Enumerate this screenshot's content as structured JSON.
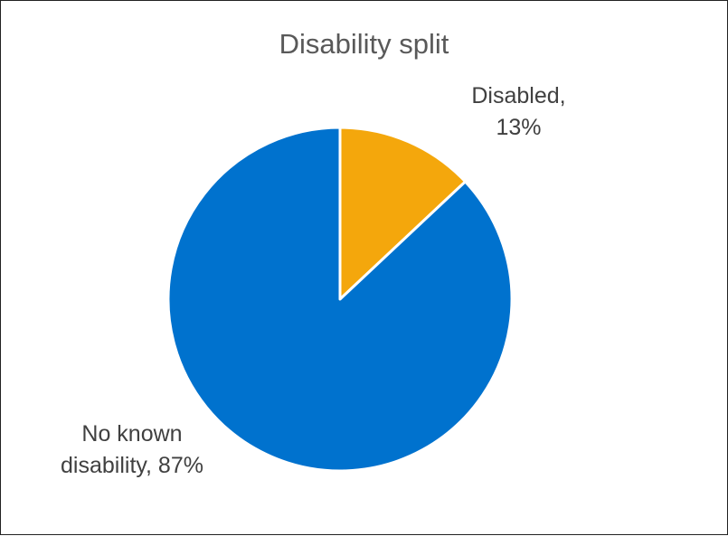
{
  "chart_data": {
    "type": "pie",
    "title": "Disability split",
    "slices": [
      {
        "label": "Disabled",
        "value": 13,
        "display": "13%",
        "color": "#F4A70C",
        "label_lines": [
          "Disabled,",
          "13%"
        ]
      },
      {
        "label": "No known disability",
        "value": 87,
        "display": "87%",
        "color": "#0072CE",
        "label_lines": [
          "No known",
          "disability, 87%"
        ]
      }
    ],
    "start_angle_deg": 0,
    "direction": "clockwise",
    "legend": "none"
  }
}
